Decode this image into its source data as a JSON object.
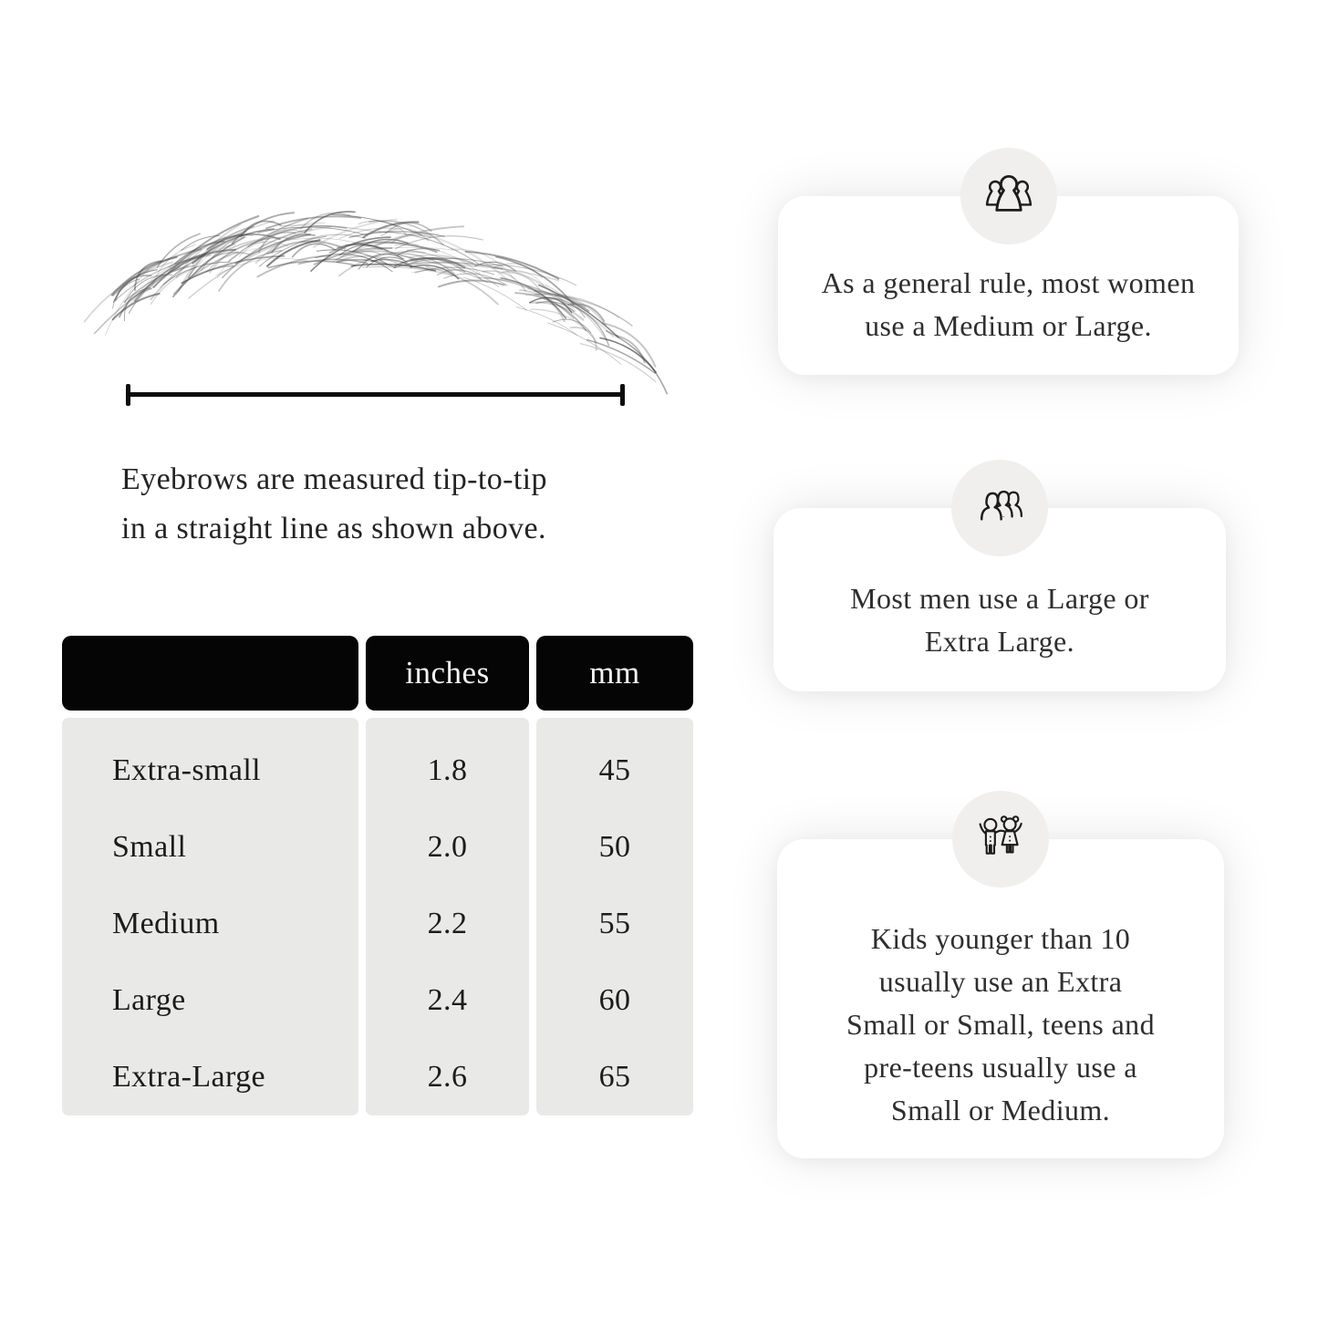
{
  "measurement_diagram": {
    "caption": [
      "Eyebrows are measured tip-to-tip",
      "in a straight line as shown above."
    ]
  },
  "size_table": {
    "header": {
      "size_col": "",
      "inches": "inches",
      "mm": "mm"
    },
    "rows": [
      {
        "label": "Extra-small",
        "inches": "1.8",
        "mm": "45"
      },
      {
        "label": "Small",
        "inches": "2.0",
        "mm": "50"
      },
      {
        "label": "Medium",
        "inches": "2.2",
        "mm": "55"
      },
      {
        "label": "Large",
        "inches": "2.4",
        "mm": "60"
      },
      {
        "label": "Extra-Large",
        "inches": "2.6",
        "mm": "65"
      }
    ]
  },
  "info_cards": [
    {
      "icon": "women-group-icon",
      "lines": [
        "As a general rule, most women",
        "use a Medium or Large."
      ]
    },
    {
      "icon": "men-group-icon",
      "lines": [
        "Most men use a Large or",
        "Extra Large."
      ]
    },
    {
      "icon": "kids-icon",
      "lines": [
        "Kids younger than 10",
        "usually use an Extra",
        "Small or Small, teens and",
        "pre-teens usually use a",
        "Small or Medium."
      ]
    }
  ],
  "colors": {
    "table_header_bg": "#050505",
    "table_body_bg": "#e9e9e8",
    "card_bg": "#ffffff",
    "icon_circle_bg": "#f0efee",
    "text": "#2e2e2e"
  }
}
